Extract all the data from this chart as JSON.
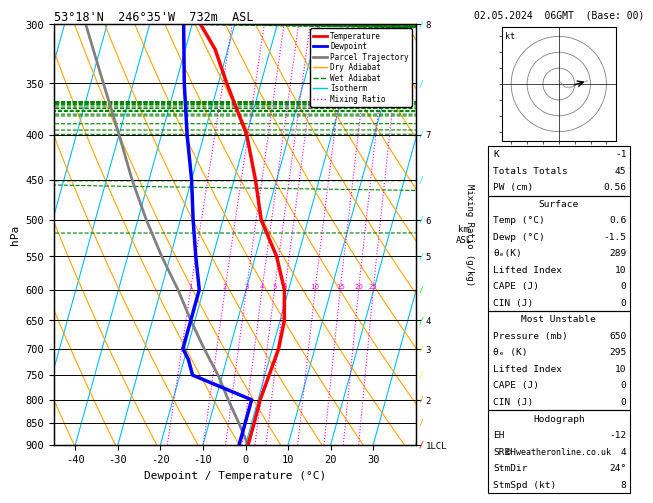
{
  "title_left": "53°18'N  246°35'W  732m  ASL",
  "title_right": "02.05.2024  06GMT  (Base: 00)",
  "xlabel": "Dewpoint / Temperature (°C)",
  "ylabel_left": "hPa",
  "pressure_ticks": [
    300,
    350,
    400,
    450,
    500,
    550,
    600,
    650,
    700,
    750,
    800,
    850,
    900
  ],
  "km_map": {
    "300": "8",
    "400": "7",
    "500": "6",
    "550": "5",
    "650": "4",
    "700": "3",
    "800": "2",
    "900": "1LCL"
  },
  "temp_ticks": [
    -40,
    -30,
    -20,
    -10,
    0,
    10,
    20,
    30
  ],
  "T_min": -45,
  "T_max": 40,
  "P_min": 300,
  "P_max": 900,
  "skew": 25.0,
  "iso_color": "#00bfff",
  "da_color": "#ffa500",
  "wa_color": "#008000",
  "mr_color": "#ff00ff",
  "temperature_profile": {
    "pressure": [
      300,
      320,
      350,
      400,
      450,
      500,
      550,
      600,
      650,
      700,
      750,
      800,
      850,
      900
    ],
    "temp": [
      -38,
      -33,
      -28,
      -20,
      -15,
      -11,
      -5,
      -1,
      1,
      1.5,
      1,
      0.5,
      0.6,
      0.6
    ],
    "color": "#ff0000",
    "linewidth": 2.5
  },
  "dewpoint_profile": {
    "pressure": [
      300,
      350,
      400,
      450,
      500,
      550,
      600,
      650,
      700,
      720,
      750,
      800,
      850,
      900
    ],
    "temp": [
      -42,
      -38,
      -34,
      -30,
      -27,
      -24,
      -21,
      -21,
      -21,
      -19,
      -17,
      -1.5,
      -1.5,
      -1.5
    ],
    "color": "#0000ff",
    "linewidth": 2.5
  },
  "parcel_trajectory": {
    "pressure": [
      900,
      850,
      800,
      750,
      700,
      650,
      600,
      550,
      500,
      450,
      400,
      350,
      300
    ],
    "temp": [
      0.6,
      -3,
      -7,
      -11,
      -16,
      -21,
      -26,
      -32,
      -38,
      -44,
      -50,
      -57,
      -65
    ],
    "color": "#808080",
    "linewidth": 2.0
  },
  "mixing_ratio_values": [
    1,
    2,
    3,
    4,
    5,
    6,
    10,
    15,
    20,
    25
  ],
  "legend_entries": [
    {
      "label": "Temperature",
      "color": "#ff0000",
      "lw": 2,
      "ls": "-"
    },
    {
      "label": "Dewpoint",
      "color": "#0000ff",
      "lw": 2,
      "ls": "-"
    },
    {
      "label": "Parcel Trajectory",
      "color": "#808080",
      "lw": 2,
      "ls": "-"
    },
    {
      "label": "Dry Adiabat",
      "color": "#ffa500",
      "lw": 1,
      "ls": "-"
    },
    {
      "label": "Wet Adiabat",
      "color": "#008000",
      "lw": 1,
      "ls": "--"
    },
    {
      "label": "Isotherm",
      "color": "#00bfff",
      "lw": 1,
      "ls": "-"
    },
    {
      "label": "Mixing Ratio",
      "color": "#ff00ff",
      "lw": 1,
      "ls": ":"
    }
  ],
  "info_K": "-1",
  "info_TT": "45",
  "info_PW": "0.56",
  "info_sfc_temp": "0.6",
  "info_sfc_dewp": "-1.5",
  "info_sfc_thetae": "289",
  "info_sfc_li": "10",
  "info_sfc_cape": "0",
  "info_sfc_cin": "0",
  "info_mu_press": "650",
  "info_mu_thetae": "295",
  "info_mu_li": "10",
  "info_mu_cape": "0",
  "info_mu_cin": "0",
  "info_eh": "-12",
  "info_sreh": "4",
  "info_stmdir": "24°",
  "info_stmspd": "8",
  "wind_pressures": [
    300,
    350,
    400,
    450,
    500,
    550,
    600,
    650,
    700,
    750,
    800,
    850,
    900
  ],
  "wind_colors": [
    "#00ffff",
    "#00ffff",
    "#00ffff",
    "#00ffff",
    "#00ffff",
    "#00ffff",
    "#00ff00",
    "#00ff00",
    "#ffff00",
    "#ffff00",
    "#ffa500",
    "#ffa500",
    "#ff0000"
  ]
}
